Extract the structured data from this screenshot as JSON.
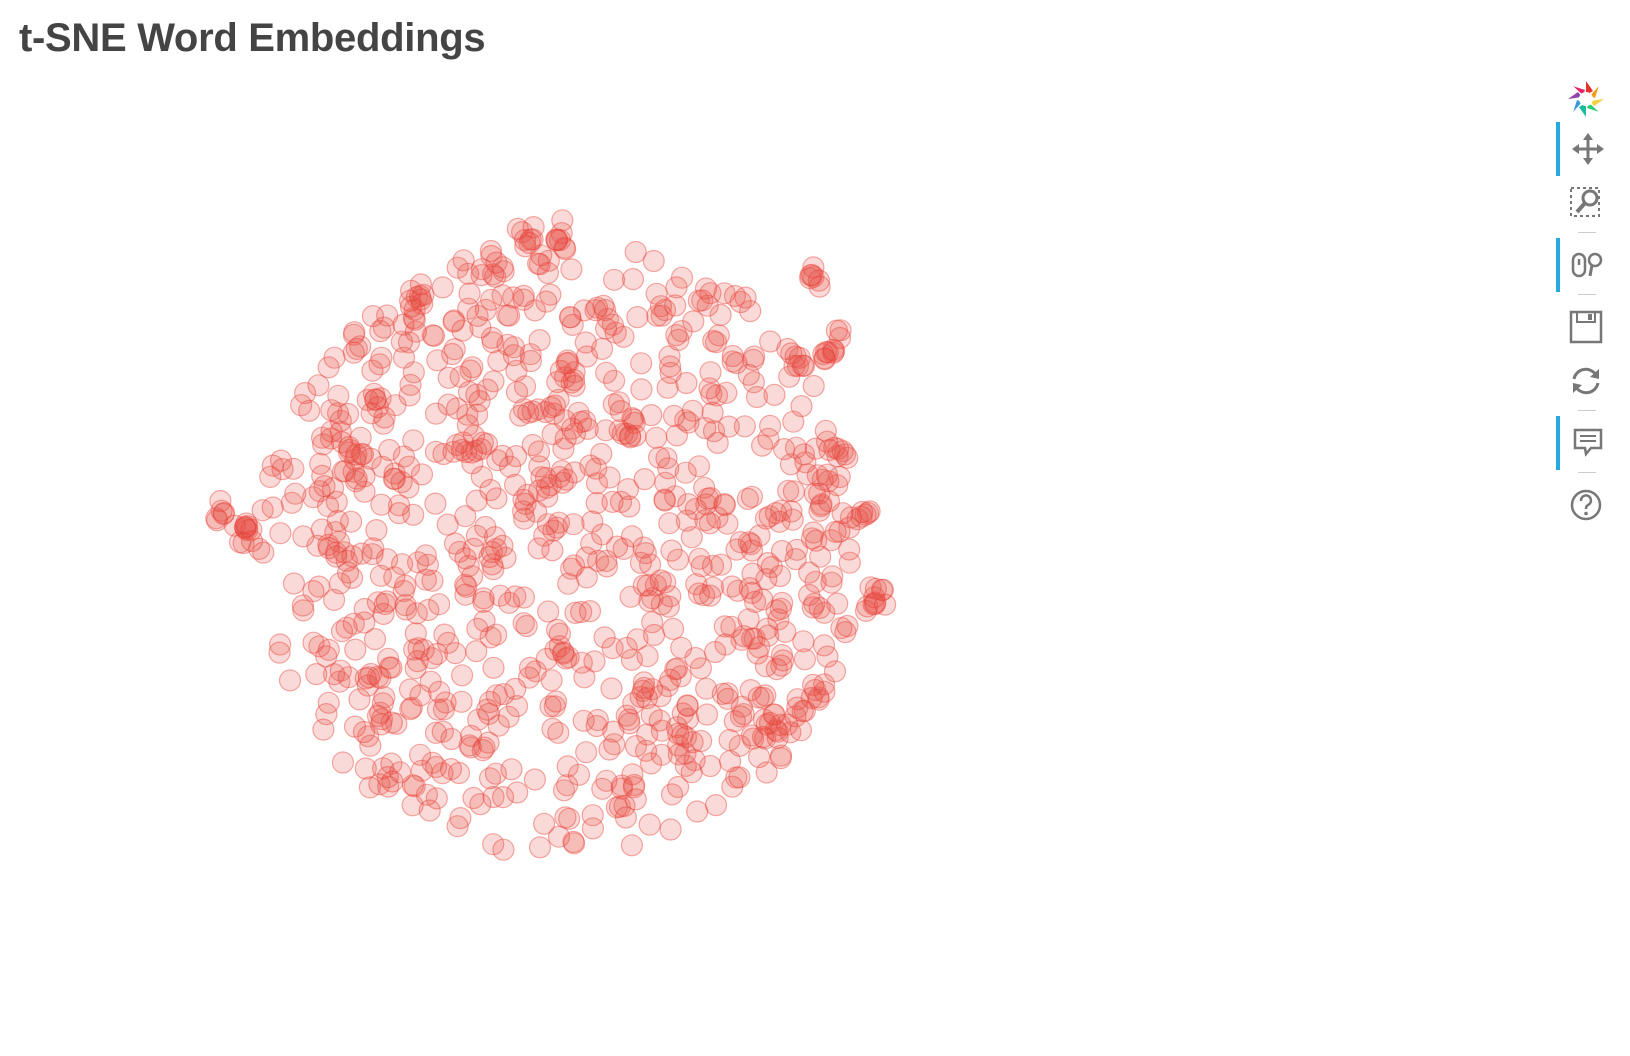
{
  "chart_data": {
    "type": "scatter",
    "title": "t-SNE Word Embeddings",
    "xlabel": "",
    "ylabel": "",
    "axes_visible": false,
    "grid": false,
    "marker": {
      "shape": "circle",
      "fill_color": "#e8453c",
      "line_color": "#e8453c",
      "alpha": 0.2
    },
    "xlim": [
      -60,
      60
    ],
    "ylim": [
      -60,
      60
    ],
    "n_points": 1000,
    "distribution": "roughly circular cloud centered at origin, with a few dense clusters",
    "sample_points": [
      [
        -48,
        5
      ],
      [
        -45,
        3
      ],
      [
        -27,
        -18
      ],
      [
        -26,
        -24
      ],
      [
        -25,
        -8
      ],
      [
        45,
        -8
      ],
      [
        46,
        -6
      ],
      [
        30,
        -25
      ],
      [
        29,
        -27
      ],
      [
        44,
        5
      ],
      [
        0,
        44
      ],
      [
        -5,
        44
      ],
      [
        15,
        34
      ],
      [
        25,
        36
      ],
      [
        36,
        39
      ],
      [
        -14,
        14
      ],
      [
        2,
        24
      ],
      [
        3,
        18
      ],
      [
        -2,
        10
      ],
      [
        10,
        16
      ],
      [
        12,
        -20
      ],
      [
        -10,
        -22
      ],
      [
        18,
        -27
      ],
      [
        -33,
        0
      ],
      [
        -30,
        14
      ],
      [
        34,
        26
      ],
      [
        38,
        28
      ],
      [
        -44,
        1
      ],
      [
        40,
        30
      ],
      [
        -20,
        36
      ]
    ]
  },
  "toolbar": {
    "logo_icon": "bokeh-logo-icon",
    "tools": [
      {
        "name": "pan-tool",
        "icon": "pan-icon",
        "active": true
      },
      {
        "name": "box-zoom-tool",
        "icon": "box-zoom-icon",
        "active": false
      },
      {
        "name": "wheel-zoom-tool",
        "icon": "wheel-zoom-icon",
        "active": true
      },
      {
        "name": "save-tool",
        "icon": "save-icon",
        "active": false
      },
      {
        "name": "reset-tool",
        "icon": "reset-icon",
        "active": false
      },
      {
        "name": "hover-tool",
        "icon": "hover-icon",
        "active": true
      },
      {
        "name": "help-tool",
        "icon": "help-icon",
        "active": false
      }
    ]
  }
}
